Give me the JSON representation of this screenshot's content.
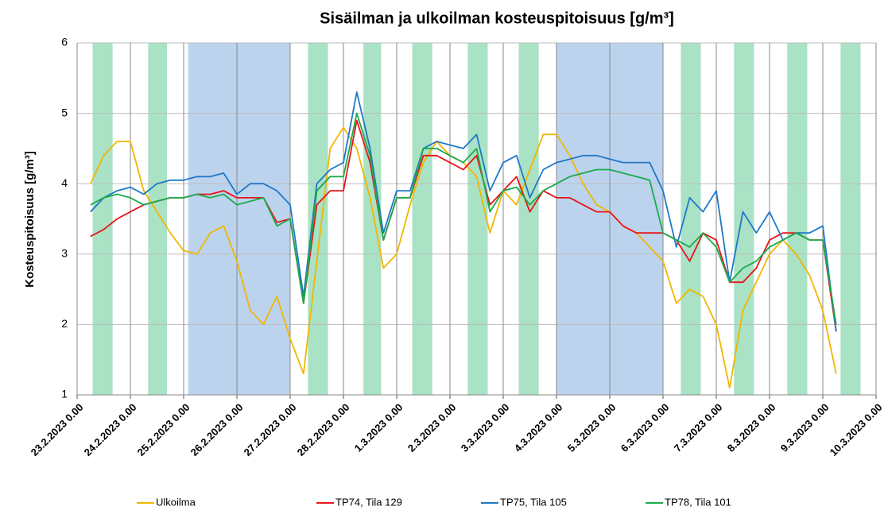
{
  "chart_data": {
    "type": "line",
    "title": "Sisäilman ja ulkoilman kosteuspitoisuus [g/m³]",
    "ylabel": "Kosteuspitoisuus [g/m³]",
    "xlim": [
      "2023-02-23T00:00",
      "2023-03-10T00:00"
    ],
    "ylim": [
      1,
      6
    ],
    "yticks": [
      1,
      2,
      3,
      4,
      5,
      6
    ],
    "xticks": [
      {
        "value": "2023-02-23T00:00",
        "label": "23.2.2023 0.00"
      },
      {
        "value": "2023-02-24T00:00",
        "label": "24.2.2023 0.00"
      },
      {
        "value": "2023-02-25T00:00",
        "label": "25.2.2023 0.00"
      },
      {
        "value": "2023-02-26T00:00",
        "label": "26.2.2023 0.00"
      },
      {
        "value": "2023-02-27T00:00",
        "label": "27.2.2023 0.00"
      },
      {
        "value": "2023-02-28T00:00",
        "label": "28.2.2023 0.00"
      },
      {
        "value": "2023-03-01T00:00",
        "label": "1.3.2023 0.00"
      },
      {
        "value": "2023-03-02T00:00",
        "label": "2.3.2023 0.00"
      },
      {
        "value": "2023-03-03T00:00",
        "label": "3.3.2023 0.00"
      },
      {
        "value": "2023-03-04T00:00",
        "label": "4.3.2023 0.00"
      },
      {
        "value": "2023-03-05T00:00",
        "label": "5.3.2023 0.00"
      },
      {
        "value": "2023-03-06T00:00",
        "label": "6.3.2023 0.00"
      },
      {
        "value": "2023-03-07T00:00",
        "label": "7.3.2023 0.00"
      },
      {
        "value": "2023-03-08T00:00",
        "label": "8.3.2023 0.00"
      },
      {
        "value": "2023-03-09T00:00",
        "label": "9.3.2023 0.00"
      },
      {
        "value": "2023-03-10T00:00",
        "label": "10.3.2023 0.00"
      }
    ],
    "grid": true,
    "legend": "bottom",
    "shaded_regions": [
      {
        "x": [
          "2023-02-23T07:00",
          "2023-02-23T16:00"
        ],
        "color": "#a9e2c4"
      },
      {
        "x": [
          "2023-02-24T08:00",
          "2023-02-24T16:30"
        ],
        "color": "#a9e2c4"
      },
      {
        "x": [
          "2023-02-25T02:00",
          "2023-02-27T00:00"
        ],
        "color": "#bcd3ee"
      },
      {
        "x": [
          "2023-02-27T08:00",
          "2023-02-27T17:00"
        ],
        "color": "#a9e2c4"
      },
      {
        "x": [
          "2023-02-28T09:00",
          "2023-02-28T17:00"
        ],
        "color": "#a9e2c4"
      },
      {
        "x": [
          "2023-03-01T07:00",
          "2023-03-01T16:00"
        ],
        "color": "#a9e2c4"
      },
      {
        "x": [
          "2023-03-02T08:00",
          "2023-03-02T17:00"
        ],
        "color": "#a9e2c4"
      },
      {
        "x": [
          "2023-03-03T07:00",
          "2023-03-03T16:00"
        ],
        "color": "#a9e2c4"
      },
      {
        "x": [
          "2023-03-04T00:00",
          "2023-03-06T00:00"
        ],
        "color": "#bcd3ee"
      },
      {
        "x": [
          "2023-03-06T08:00",
          "2023-03-06T17:00"
        ],
        "color": "#a9e2c4"
      },
      {
        "x": [
          "2023-03-07T08:00",
          "2023-03-07T17:00"
        ],
        "color": "#a9e2c4"
      },
      {
        "x": [
          "2023-03-08T08:00",
          "2023-03-08T17:00"
        ],
        "color": "#a9e2c4"
      },
      {
        "x": [
          "2023-03-09T08:00",
          "2023-03-09T17:00"
        ],
        "color": "#a9e2c4"
      }
    ],
    "x": [
      "2023-02-23T06:00",
      "2023-02-23T12:00",
      "2023-02-23T18:00",
      "2023-02-24T00:00",
      "2023-02-24T06:00",
      "2023-02-24T12:00",
      "2023-02-24T18:00",
      "2023-02-25T00:00",
      "2023-02-25T06:00",
      "2023-02-25T12:00",
      "2023-02-25T18:00",
      "2023-02-26T00:00",
      "2023-02-26T06:00",
      "2023-02-26T12:00",
      "2023-02-26T18:00",
      "2023-02-27T00:00",
      "2023-02-27T06:00",
      "2023-02-27T12:00",
      "2023-02-27T18:00",
      "2023-02-28T00:00",
      "2023-02-28T06:00",
      "2023-02-28T12:00",
      "2023-02-28T18:00",
      "2023-03-01T00:00",
      "2023-03-01T06:00",
      "2023-03-01T12:00",
      "2023-03-01T18:00",
      "2023-03-02T00:00",
      "2023-03-02T06:00",
      "2023-03-02T12:00",
      "2023-03-02T18:00",
      "2023-03-03T00:00",
      "2023-03-03T06:00",
      "2023-03-03T12:00",
      "2023-03-03T18:00",
      "2023-03-04T00:00",
      "2023-03-04T06:00",
      "2023-03-04T12:00",
      "2023-03-04T18:00",
      "2023-03-05T00:00",
      "2023-03-05T06:00",
      "2023-03-05T12:00",
      "2023-03-05T18:00",
      "2023-03-06T00:00",
      "2023-03-06T06:00",
      "2023-03-06T12:00",
      "2023-03-06T18:00",
      "2023-03-07T00:00",
      "2023-03-07T06:00",
      "2023-03-07T12:00",
      "2023-03-07T18:00",
      "2023-03-08T00:00",
      "2023-03-08T06:00",
      "2023-03-08T12:00",
      "2023-03-08T18:00",
      "2023-03-09T00:00",
      "2023-03-09T06:00"
    ],
    "series": [
      {
        "name": "Ulkoilma",
        "color": "#f2b600",
        "values": [
          4.0,
          4.4,
          4.6,
          4.6,
          3.9,
          3.6,
          3.3,
          3.05,
          3.0,
          3.3,
          3.4,
          2.9,
          2.2,
          2.0,
          2.4,
          1.8,
          1.3,
          2.9,
          4.5,
          4.8,
          4.5,
          3.8,
          2.8,
          3.0,
          3.7,
          4.3,
          4.6,
          4.4,
          4.3,
          4.1,
          3.3,
          3.9,
          3.7,
          4.2,
          4.7,
          4.7,
          4.4,
          4.0,
          3.7,
          3.6,
          3.4,
          3.3,
          3.1,
          2.9,
          2.3,
          2.5,
          2.4,
          2.0,
          1.1,
          2.2,
          2.6,
          3.0,
          3.2,
          3.0,
          2.7,
          2.2,
          1.3
        ]
      },
      {
        "name": "TP74, Tila 129",
        "color": "#e8141a",
        "values": [
          3.25,
          3.35,
          3.5,
          3.6,
          3.7,
          3.75,
          3.8,
          3.8,
          3.85,
          3.85,
          3.9,
          3.8,
          3.8,
          3.8,
          3.45,
          3.5,
          2.3,
          3.7,
          3.9,
          3.9,
          4.9,
          4.3,
          3.2,
          3.8,
          3.8,
          4.4,
          4.4,
          4.3,
          4.2,
          4.4,
          3.7,
          3.9,
          4.1,
          3.6,
          3.9,
          3.8,
          3.8,
          3.7,
          3.6,
          3.6,
          3.4,
          3.3,
          3.3,
          3.3,
          3.2,
          2.9,
          3.3,
          3.2,
          2.6,
          2.6,
          2.8,
          3.2,
          3.3,
          3.3,
          3.2,
          3.2,
          1.9
        ]
      },
      {
        "name": "TP75, Tila 105",
        "color": "#1f78c8",
        "values": [
          3.6,
          3.8,
          3.9,
          3.95,
          3.85,
          4.0,
          4.05,
          4.05,
          4.1,
          4.1,
          4.15,
          3.85,
          4.0,
          4.0,
          3.9,
          3.7,
          2.4,
          4.0,
          4.2,
          4.3,
          5.3,
          4.5,
          3.3,
          3.9,
          3.9,
          4.5,
          4.6,
          4.55,
          4.5,
          4.7,
          3.9,
          4.3,
          4.4,
          3.8,
          4.2,
          4.3,
          4.35,
          4.4,
          4.4,
          4.35,
          4.3,
          4.3,
          4.3,
          3.9,
          3.1,
          3.8,
          3.6,
          3.9,
          2.6,
          3.6,
          3.3,
          3.6,
          3.2,
          3.3,
          3.3,
          3.4,
          1.9
        ]
      },
      {
        "name": "TP78, Tila 101",
        "color": "#1aab4a",
        "values": [
          3.7,
          3.8,
          3.85,
          3.8,
          3.7,
          3.75,
          3.8,
          3.8,
          3.85,
          3.8,
          3.85,
          3.7,
          3.75,
          3.8,
          3.4,
          3.5,
          2.3,
          3.9,
          4.1,
          4.1,
          5.0,
          4.4,
          3.2,
          3.8,
          3.8,
          4.5,
          4.5,
          4.4,
          4.3,
          4.5,
          3.6,
          3.9,
          3.95,
          3.7,
          3.9,
          4.0,
          4.1,
          4.15,
          4.2,
          4.2,
          4.15,
          4.1,
          4.05,
          3.3,
          3.2,
          3.1,
          3.3,
          3.1,
          2.6,
          2.8,
          2.9,
          3.1,
          3.2,
          3.3,
          3.2,
          3.2,
          2.0
        ]
      }
    ]
  }
}
